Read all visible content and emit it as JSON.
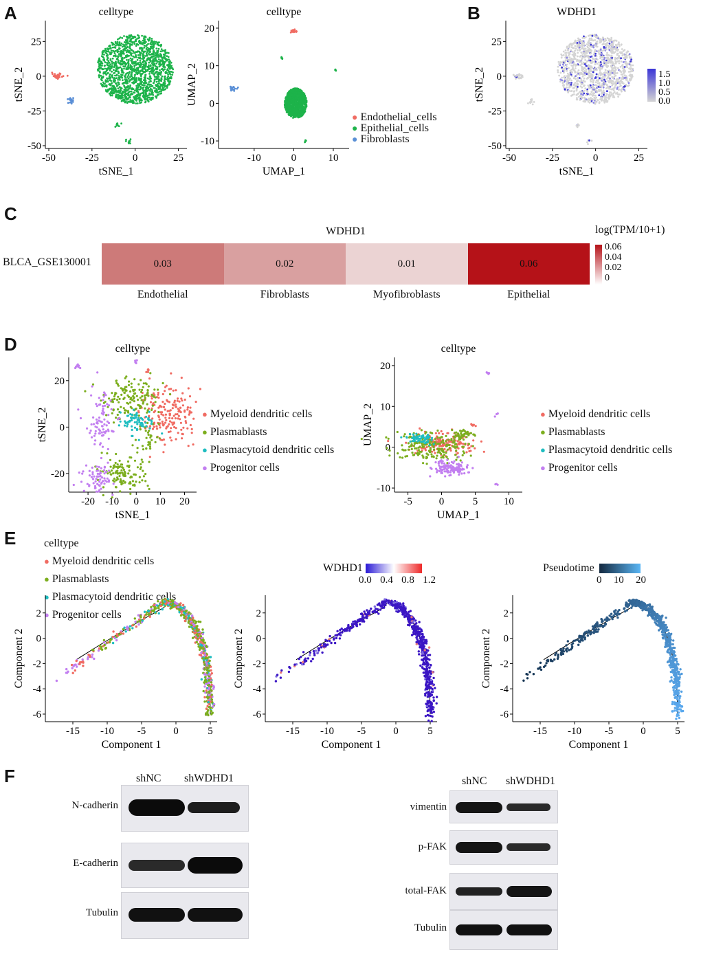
{
  "panel_labels": {
    "a": "A",
    "b": "B",
    "c": "C",
    "d": "D",
    "e": "E",
    "f": "F"
  },
  "chart_data": [
    {
      "id": "A1",
      "type": "scatter",
      "title": "celltype",
      "xlabel": "tSNE_1",
      "ylabel": "tSNE_2",
      "xticks": [
        -50,
        -25,
        0,
        25
      ],
      "yticks": [
        -50,
        -25,
        0,
        25
      ],
      "xlim": [
        -52,
        30
      ],
      "ylim": [
        -52,
        40
      ],
      "series": [
        {
          "name": "Endothelial_cells",
          "color": "#f06b62",
          "clusters": [
            [
              -45,
              0,
              2.5,
              1.5,
              40
            ]
          ]
        },
        {
          "name": "Epithelial_cells",
          "color": "#1db34a",
          "clusters": [
            [
              0,
              5,
              22,
              25,
              1500
            ],
            [
              -10,
              -35,
              1.5,
              1.5,
              12
            ],
            [
              -4,
              -47,
              1.2,
              1.5,
              10
            ]
          ]
        },
        {
          "name": "Fibroblasts",
          "color": "#5a8fd6",
          "clusters": [
            [
              -37,
              -18,
              1.5,
              2.5,
              20
            ]
          ]
        }
      ]
    },
    {
      "id": "A2",
      "type": "scatter",
      "title": "celltype",
      "xlabel": "UMAP_1",
      "ylabel": "UMAP_2",
      "xticks": [
        -10,
        0,
        10
      ],
      "yticks": [
        -10,
        0,
        10,
        20
      ],
      "xlim": [
        -19,
        14
      ],
      "ylim": [
        -12,
        22
      ],
      "legend": [
        "Endothelial_cells",
        "Epithelial_cells",
        "Fibroblasts"
      ],
      "series": [
        {
          "name": "Endothelial_cells",
          "color": "#f06b62",
          "clusters": [
            [
              0,
              19.2,
              0.8,
              0.3,
              25
            ]
          ]
        },
        {
          "name": "Epithelial_cells",
          "color": "#1db34a",
          "clusters": [
            [
              0.5,
              0,
              2.8,
              4,
              900
            ],
            [
              -3,
              12,
              0.2,
              0.3,
              5
            ],
            [
              10.5,
              9,
              0.2,
              0.3,
              5
            ],
            [
              3,
              -10,
              0.3,
              0.3,
              6
            ]
          ]
        },
        {
          "name": "Fibroblasts",
          "color": "#5a8fd6",
          "clusters": [
            [
              -15.5,
              4,
              1,
              0.6,
              20
            ]
          ]
        }
      ]
    },
    {
      "id": "B",
      "type": "scatter",
      "title": "WDHD1",
      "xlabel": "tSNE_1",
      "ylabel": "tSNE_2",
      "xticks": [
        -50,
        -25,
        0,
        25
      ],
      "yticks": [
        -50,
        -25,
        0,
        25
      ],
      "xlim": [
        -52,
        30
      ],
      "ylim": [
        -52,
        40
      ],
      "colorbar": {
        "ticks": [
          "1.5",
          "1.0",
          "0.5",
          "0.0"
        ],
        "low": "#d4d4d4",
        "high": "#3b35d6"
      }
    },
    {
      "id": "C",
      "type": "heatmap",
      "title": "WDHD1",
      "row": "BLCA_GSE130001",
      "columns": [
        "Endothelial",
        "Fibroblasts",
        "Myofibroblasts",
        "Epithelial"
      ],
      "values": [
        0.03,
        0.02,
        0.01,
        0.06
      ],
      "labels": [
        "0.03",
        "0.02",
        "0.01",
        "0.06"
      ],
      "colorbar_title": "log(TPM/10+1)",
      "colorbar_ticks": [
        "0.06",
        "0.04",
        "0.02",
        "0"
      ],
      "colors": [
        "#cd7a79",
        "#d9a0a0",
        "#ebd3d3",
        "#b51218"
      ]
    },
    {
      "id": "D1",
      "type": "scatter",
      "title": "celltype",
      "xlabel": "tSNE_1",
      "ylabel": "tSNE_2",
      "xticks": [
        -20,
        -10,
        0,
        10,
        20
      ],
      "yticks": [
        -20,
        0,
        20
      ],
      "xlim": [
        -28,
        25
      ],
      "ylim": [
        -28,
        30
      ],
      "legend": [
        "Myeloid dendritic cells",
        "Plasmablasts",
        "Plasmacytoid dendritic cells",
        "Progenitor cells"
      ]
    },
    {
      "id": "D2",
      "type": "scatter",
      "title": "celltype",
      "xlabel": "UMAP_1",
      "ylabel": "UMAP_2",
      "xticks": [
        -5,
        0,
        5,
        10
      ],
      "yticks": [
        -10,
        0,
        10,
        20
      ],
      "xlim": [
        -7,
        12
      ],
      "ylim": [
        -11,
        22
      ],
      "legend": [
        "Myeloid dendritic cells",
        "Plasmablasts",
        "Plasmacytoid dendritic cells",
        "Progenitor cells"
      ]
    },
    {
      "id": "E1",
      "type": "scatter",
      "legend_title": "celltype",
      "xlabel": "Component 1",
      "ylabel": "Component 2",
      "xticks": [
        -15,
        -10,
        -5,
        0,
        5
      ],
      "yticks": [
        -6,
        -4,
        -2,
        0,
        2
      ],
      "legend": [
        "Myeloid dendritic cells",
        "Plasmablasts",
        "Plasmacytoid dendritic cells",
        "Progenitor cells"
      ]
    },
    {
      "id": "E2",
      "type": "scatter",
      "colorbar_title": "WDHD1",
      "colorbar_ticks": [
        "0.0",
        "0.4",
        "0.8",
        "1.2"
      ],
      "xlabel": "Component 1",
      "ylabel": "Component 2",
      "xticks": [
        -15,
        -10,
        -5,
        0,
        5
      ],
      "yticks": [
        -6,
        -4,
        -2,
        0,
        2
      ]
    },
    {
      "id": "E3",
      "type": "scatter",
      "colorbar_title": "Pseudotime",
      "colorbar_ticks": [
        "0",
        "10",
        "20"
      ],
      "xlabel": "Component 1",
      "ylabel": "Component 2",
      "xticks": [
        -15,
        -10,
        -5,
        0,
        5
      ],
      "yticks": [
        -6,
        -4,
        -2,
        0,
        2
      ]
    }
  ],
  "legend_colors": {
    "endothelial": "#f06b62",
    "epithelial": "#1db34a",
    "fibroblasts": "#5a8fd6",
    "myeloid": "#f06b62",
    "plasmablasts": "#7cae1e",
    "plasmacytoid": "#1fbdc0",
    "progenitor": "#c27ff0"
  },
  "western": {
    "left": {
      "headers": [
        "shNC",
        "shWDHD1"
      ],
      "rows": [
        "N-cadherin",
        "E-cadherin",
        "Tubulin"
      ]
    },
    "right": {
      "headers": [
        "shNC",
        "shWDHD1"
      ],
      "rows": [
        "vimentin",
        "p-FAK",
        "total-FAK",
        "Tubulin"
      ]
    }
  }
}
